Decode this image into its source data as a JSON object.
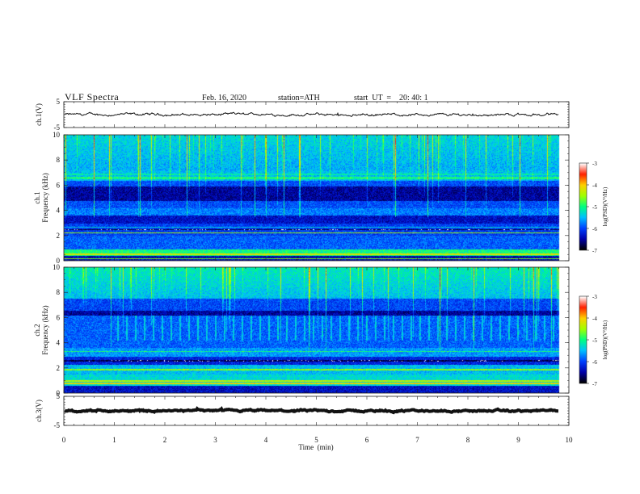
{
  "header": {
    "title": "VLF  Spectra",
    "date": "Feb. 16, 2020",
    "station": "station=ATH",
    "start": "start  UT  =    20: 40: 1"
  },
  "chart_data": [
    {
      "type": "line",
      "name": "ch1-waveform",
      "ylabel": "ch.1(V)",
      "ylim": [
        -5,
        5
      ],
      "yticks": [
        -5,
        5
      ],
      "xlim": [
        0,
        10
      ],
      "x_end": 9.8,
      "baseline": 0,
      "amplitude": 0.6
    },
    {
      "type": "heatmap",
      "name": "ch1-spectrogram",
      "ylabel": "ch.1\nFrequency (kHz)",
      "ylim": [
        0,
        10
      ],
      "yticks": [
        0,
        2,
        4,
        6,
        8,
        10
      ],
      "xlim": [
        0,
        10
      ],
      "x_end": 9.8,
      "colorbar": {
        "label": "log(PSD)(V²/Hz)",
        "range": [
          -7,
          -3
        ],
        "ticks": [
          -7,
          -6,
          -5,
          -4,
          -3
        ]
      }
    },
    {
      "type": "heatmap",
      "name": "ch2-spectrogram",
      "ylabel": "ch.2\nFrequency (kHz)",
      "ylim": [
        0,
        10
      ],
      "yticks": [
        0,
        2,
        4,
        6,
        8,
        10
      ],
      "xlim": [
        0,
        10
      ],
      "x_end": 9.8,
      "colorbar": {
        "label": "log(PSD)(V²/Hz)",
        "range": [
          -7,
          -3
        ],
        "ticks": [
          -7,
          -6,
          -5,
          -4,
          -3
        ]
      }
    },
    {
      "type": "line",
      "name": "ch3-waveform",
      "ylabel": "ch.3(V)",
      "ylim": [
        -5,
        5
      ],
      "yticks": [
        -5,
        5
      ],
      "xlim": [
        0,
        10
      ],
      "x_end": 9.8,
      "baseline": 0,
      "amplitude": 0.35
    }
  ],
  "xaxis": {
    "label": "Time  (min)",
    "ticks": [
      0,
      1,
      2,
      3,
      4,
      5,
      6,
      7,
      8,
      9,
      10
    ]
  },
  "colors": {
    "waveform": "#111111",
    "colormap": [
      "#000000",
      "#0000aa",
      "#0040ff",
      "#00c0ff",
      "#00ff80",
      "#a0ff00",
      "#ffd000",
      "#ff2000",
      "#ffffff"
    ]
  }
}
